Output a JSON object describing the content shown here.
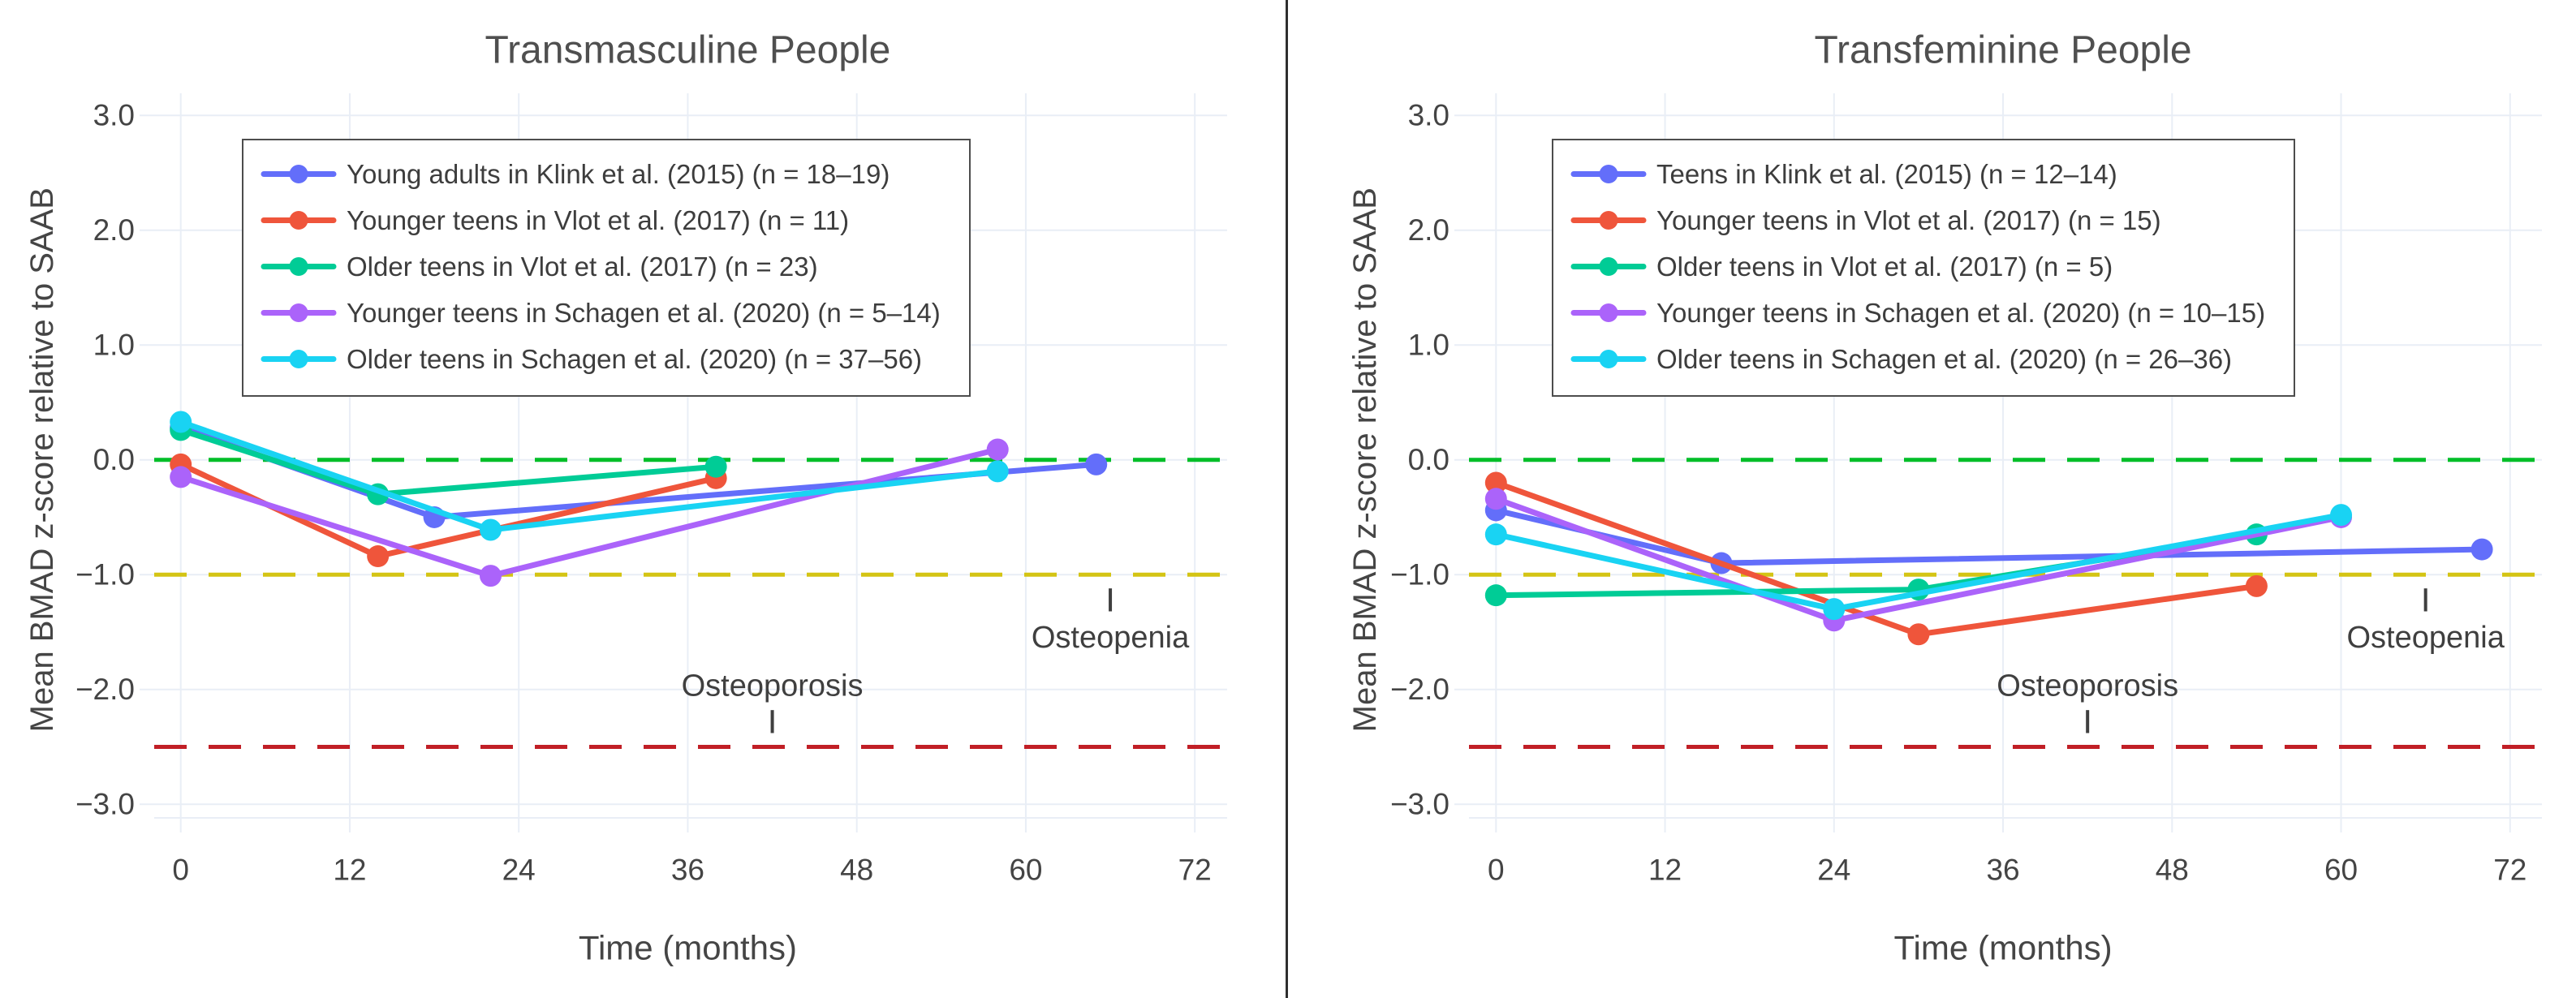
{
  "figure": {
    "background": "#ffffff",
    "divider_color": "#2e2e2e",
    "grid_color": "#e9eef6",
    "tick_text_color": "#444444",
    "title_text_color": "#4f4f4f",
    "axis_title_color": "#454545",
    "legend_text_color": "#3d3d3d",
    "legend_border_color": "#4d4d4d",
    "annotation_color": "#3f3f3f"
  },
  "chart_data": [
    {
      "type": "line",
      "title": "Transmasculine People",
      "xlabel": "Time (months)",
      "ylabel": "Mean BMAD z-score relative to SAAB",
      "xlim": [
        -2,
        74
      ],
      "ylim": [
        -3.2,
        3.2
      ],
      "grid": true,
      "legend_position": "top-left",
      "xticks": [
        0,
        12,
        24,
        36,
        48,
        60,
        72
      ],
      "xtick_labels": [
        "0",
        "12",
        "24",
        "36",
        "48",
        "60",
        "72"
      ],
      "ytick_values": [
        3,
        2,
        1,
        0,
        -1,
        -2,
        -3
      ],
      "ytick_labels": [
        "3.0",
        "2.0",
        "1.0",
        "0.0",
        "−1.0",
        "−2.0",
        "−3.0"
      ],
      "series": [
        {
          "name": "Young adults in Klink et al. (2015) (n = 18–19)",
          "color": "#636EFA",
          "x": [
            0,
            18,
            65
          ],
          "y": [
            0.28,
            -0.5,
            -0.04
          ]
        },
        {
          "name": "Younger teens in Vlot et al. (2017) (n = 11)",
          "color": "#EF553B",
          "x": [
            0,
            14,
            38
          ],
          "y": [
            -0.04,
            -0.84,
            -0.16
          ]
        },
        {
          "name": "Older teens in Vlot et al. (2017) (n = 23)",
          "color": "#00CC96",
          "x": [
            0,
            14,
            38
          ],
          "y": [
            0.26,
            -0.3,
            -0.06
          ]
        },
        {
          "name": "Younger teens in Schagen et al. (2020) (n = 5–14)",
          "color": "#AB63FA",
          "x": [
            0,
            22,
            58
          ],
          "y": [
            -0.15,
            -1.01,
            0.09
          ]
        },
        {
          "name": "Older teens in Schagen et al. (2020) (n = 37–56)",
          "color": "#19D3F3",
          "x": [
            0,
            22,
            58
          ],
          "y": [
            0.33,
            -0.61,
            -0.1
          ]
        }
      ],
      "reference_lines": [
        {
          "y": 0,
          "color": "#00BE28",
          "style": "dashed"
        },
        {
          "y": -1,
          "color": "#D4C414",
          "style": "dashed"
        },
        {
          "y": -2.5,
          "color": "#C11F26",
          "style": "dashed"
        }
      ],
      "annotations": [
        {
          "text": "Osteoporosis",
          "x": 42,
          "y": -1.97,
          "tick_from": -2.18,
          "tick_to": -2.38
        },
        {
          "text": "Osteopenia",
          "x": 66,
          "y": -1.55,
          "tick_from": -1.12,
          "tick_to": -1.32
        }
      ]
    },
    {
      "type": "line",
      "title": "Transfeminine People",
      "xlabel": "Time (months)",
      "ylabel": "Mean BMAD z-score relative to SAAB",
      "xlim": [
        -2,
        74
      ],
      "ylim": [
        -3.2,
        3.2
      ],
      "grid": true,
      "legend_position": "top-left",
      "xticks": [
        0,
        12,
        24,
        36,
        48,
        60,
        72
      ],
      "xtick_labels": [
        "0",
        "12",
        "24",
        "36",
        "48",
        "60",
        "72"
      ],
      "ytick_values": [
        3,
        2,
        1,
        0,
        -1,
        -2,
        -3
      ],
      "ytick_labels": [
        "3.0",
        "2.0",
        "1.0",
        "0.0",
        "−1.0",
        "−2.0",
        "−3.0"
      ],
      "series": [
        {
          "name": "Teens in Klink et al. (2015) (n = 12–14)",
          "color": "#636EFA",
          "x": [
            0,
            16,
            70
          ],
          "y": [
            -0.44,
            -0.9,
            -0.78
          ]
        },
        {
          "name": "Younger teens in Vlot et al. (2017) (n = 15)",
          "color": "#EF553B",
          "x": [
            0,
            30,
            54
          ],
          "y": [
            -0.2,
            -1.52,
            -1.1
          ]
        },
        {
          "name": "Older teens in Vlot et al. (2017) (n = 5)",
          "color": "#00CC96",
          "x": [
            0,
            30,
            54
          ],
          "y": [
            -1.18,
            -1.13,
            -0.65
          ]
        },
        {
          "name": "Younger teens in Schagen et al. (2020) (n = 10–15)",
          "color": "#AB63FA",
          "x": [
            0,
            24,
            60
          ],
          "y": [
            -0.34,
            -1.4,
            -0.5
          ]
        },
        {
          "name": "Older teens in Schagen et al. (2020) (n = 26–36)",
          "color": "#19D3F3",
          "x": [
            0,
            24,
            60
          ],
          "y": [
            -0.65,
            -1.3,
            -0.48
          ]
        }
      ],
      "reference_lines": [
        {
          "y": 0,
          "color": "#00BE28",
          "style": "dashed"
        },
        {
          "y": -1,
          "color": "#D4C414",
          "style": "dashed"
        },
        {
          "y": -2.5,
          "color": "#C11F26",
          "style": "dashed"
        }
      ],
      "annotations": [
        {
          "text": "Osteoporosis",
          "x": 42,
          "y": -1.97,
          "tick_from": -2.18,
          "tick_to": -2.38
        },
        {
          "text": "Osteopenia",
          "x": 66,
          "y": -1.55,
          "tick_from": -1.12,
          "tick_to": -1.32
        }
      ]
    }
  ]
}
